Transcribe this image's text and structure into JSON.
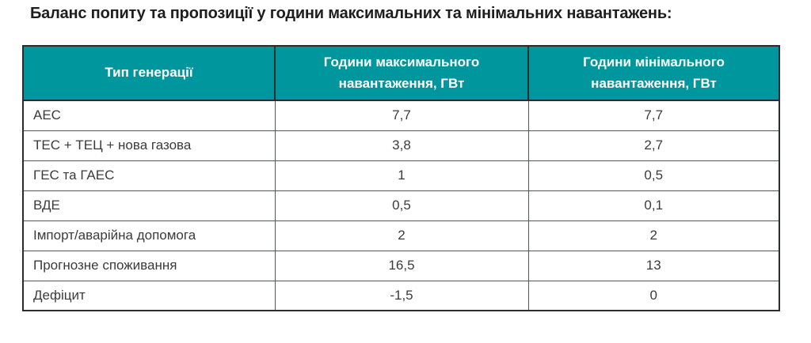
{
  "title": "Баланс попиту та пропозиції у години максимальних та мінімальних навантажень:",
  "colors": {
    "header_bg": "#00969E",
    "header_text": "#FFFFFF",
    "border_dark": "#2A2D30",
    "border_mid": "#53575A",
    "body_text": "#3B3B3B",
    "title_text": "#1E1E1E",
    "page_bg": "#FFFFFF"
  },
  "table": {
    "headers": [
      "Тип генерації",
      "Години максимального навантаження, ГВт",
      "Години мінімального навантаження, ГВт"
    ],
    "rows": [
      [
        "АЕС",
        "7,7",
        "7,7"
      ],
      [
        "ТЕС + ТЕЦ + нова газова",
        "3,8",
        "2,7"
      ],
      [
        "ГЕС та ГАЕС",
        "1",
        "0,5"
      ],
      [
        "ВДЕ",
        "0,5",
        "0,1"
      ],
      [
        "Імпорт/аварійна допомога",
        "2",
        "2"
      ],
      [
        "Прогнозне споживання",
        "16,5",
        "13"
      ],
      [
        "Дефіцит",
        "-1,5",
        "0"
      ]
    ]
  },
  "chart_data": {
    "type": "table",
    "title": "Баланс попиту та пропозиції у години максимальних та мінімальних навантажень:",
    "categories": [
      "АЕС",
      "ТЕС + ТЕЦ + нова газова",
      "ГЕС та ГАЕС",
      "ВДЕ",
      "Імпорт/аварійна допомога",
      "Прогнозне споживання",
      "Дефіцит"
    ],
    "series": [
      {
        "name": "Години максимального навантаження, ГВт",
        "values": [
          7.7,
          3.8,
          1,
          0.5,
          2,
          16.5,
          -1.5
        ]
      },
      {
        "name": "Години мінімального навантаження, ГВт",
        "values": [
          7.7,
          2.7,
          0.5,
          0.1,
          2,
          13,
          0
        ]
      }
    ],
    "units": "ГВт"
  }
}
